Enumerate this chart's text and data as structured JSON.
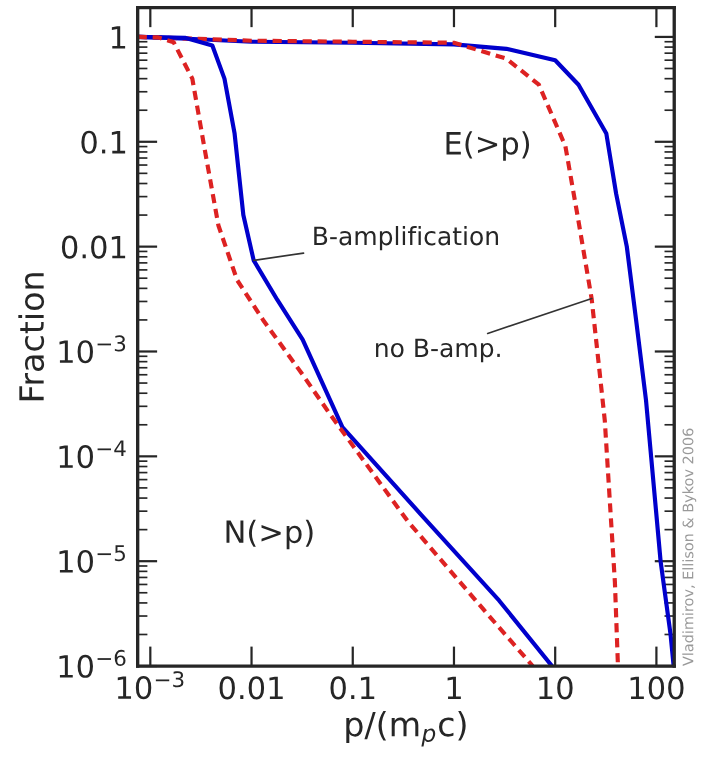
{
  "chart_data": {
    "type": "line",
    "xlabel": "p/(m$_{p}$c)",
    "ylabel": "Fraction",
    "log": "xy",
    "grid": false,
    "xlim": [
      0.00075,
      150
    ],
    "ylim": [
      1e-06,
      1.9
    ],
    "xticks": [
      {
        "value": 0.001,
        "label": "10$^{−3}$"
      },
      {
        "value": 0.01,
        "label": "0.01"
      },
      {
        "value": 0.1,
        "label": "0.1"
      },
      {
        "value": 1,
        "label": "1"
      },
      {
        "value": 10,
        "label": "10"
      },
      {
        "value": 100,
        "label": "100"
      }
    ],
    "yticks": [
      {
        "value": 1e-06,
        "label": "10$^{−6}$"
      },
      {
        "value": 1e-05,
        "label": "10$^{−5}$"
      },
      {
        "value": 0.0001,
        "label": "10$^{−4}$"
      },
      {
        "value": 0.001,
        "label": "10$^{−3}$"
      },
      {
        "value": 0.01,
        "label": "0.01"
      },
      {
        "value": 0.1,
        "label": "0.1"
      },
      {
        "value": 1,
        "label": "1"
      }
    ],
    "series": [
      {
        "color": "#0000cc",
        "line_style": "solid",
        "x": [
          0.00075,
          0.0015,
          0.003,
          0.01,
          0.1,
          1,
          3.3,
          10,
          17,
          32,
          40,
          51,
          63,
          79,
          110,
          138,
          148
        ],
        "values": [
          1,
          0.98,
          0.95,
          0.9,
          0.88,
          0.85,
          0.77,
          0.6,
          0.35,
          0.12,
          0.032,
          0.01,
          0.002,
          0.00034,
          1e-05,
          2e-06,
          1e-06
        ]
      },
      {
        "color": "#dd2222",
        "line_style": "dashed",
        "x": [
          0.00075,
          0.0015,
          0.003,
          0.01,
          0.1,
          1,
          3.3,
          6.9,
          12.6,
          16.6,
          22.9,
          27.5,
          30.9,
          38.9,
          41.7
        ],
        "values": [
          1,
          0.98,
          0.96,
          0.92,
          0.9,
          0.88,
          0.62,
          0.35,
          0.091,
          0.02,
          0.0032,
          0.00063,
          0.00022,
          6.3e-06,
          1e-06
        ]
      },
      {
        "color": "#0000cc",
        "line_style": "solid",
        "x": [
          0.00075,
          0.0022,
          0.0041,
          0.0054,
          0.0068,
          0.0083,
          0.0105,
          0.018,
          0.032,
          0.079,
          0.47,
          2.8,
          9.3
        ],
        "values": [
          1,
          0.98,
          0.83,
          0.4,
          0.12,
          0.02,
          0.0074,
          0.0031,
          0.0013,
          0.00019,
          2.8e-05,
          4.2e-06,
          1e-06
        ]
      },
      {
        "color": "#dd2222",
        "line_style": "dashed",
        "x": [
          0.00075,
          0.0012,
          0.0017,
          0.0026,
          0.0034,
          0.0047,
          0.0072,
          0.013,
          0.032,
          0.06,
          0.35,
          2.1,
          6.0
        ],
        "values": [
          1,
          0.99,
          0.89,
          0.4,
          0.091,
          0.016,
          0.0048,
          0.002,
          0.0006,
          0.00025,
          2.4e-05,
          3.2e-06,
          1e-06
        ]
      }
    ],
    "annotations": [
      "E(>p)",
      "N(>p)",
      {
        "text": "B-amplification",
        "x": 0.0105,
        "y": 0.0074
      },
      {
        "text": "no B-amp.",
        "x": 23,
        "y": 0.0032
      },
      "Vladimirov, Ellison & Bykov 2006"
    ]
  }
}
